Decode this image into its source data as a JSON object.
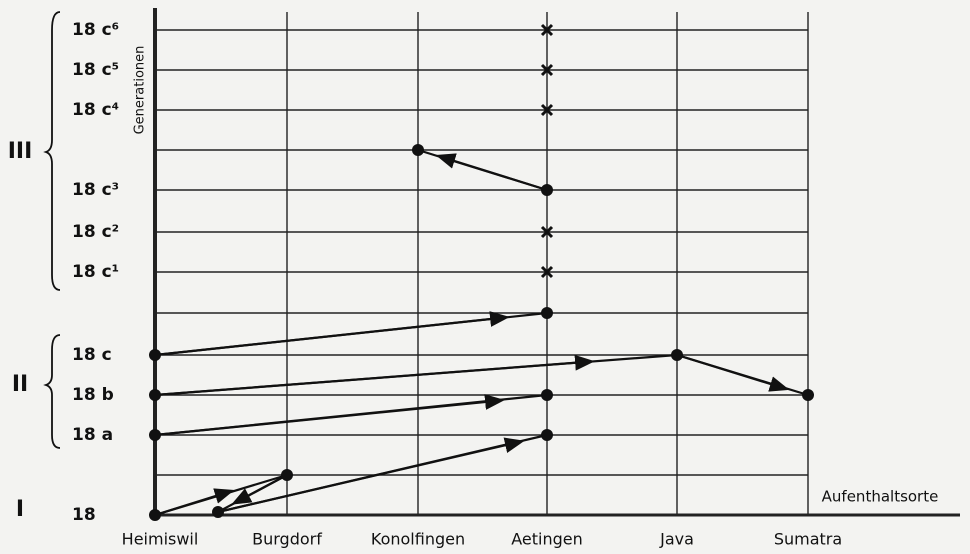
{
  "axis_label_y": "Generationen",
  "axis_label_x": "Aufenthaltsorte",
  "places": [
    "Heimiswil",
    "Burgdorf",
    "Konolfingen",
    "Aetingen",
    "Java",
    "Sumatra"
  ],
  "generations": [
    "18",
    "18 a",
    "18 b",
    "18 c",
    "18 c¹",
    "18 c²",
    "18 c³",
    "18 c⁴",
    "18 c⁵",
    "18 c⁶"
  ],
  "groups": [
    "I",
    "II",
    "III"
  ]
}
